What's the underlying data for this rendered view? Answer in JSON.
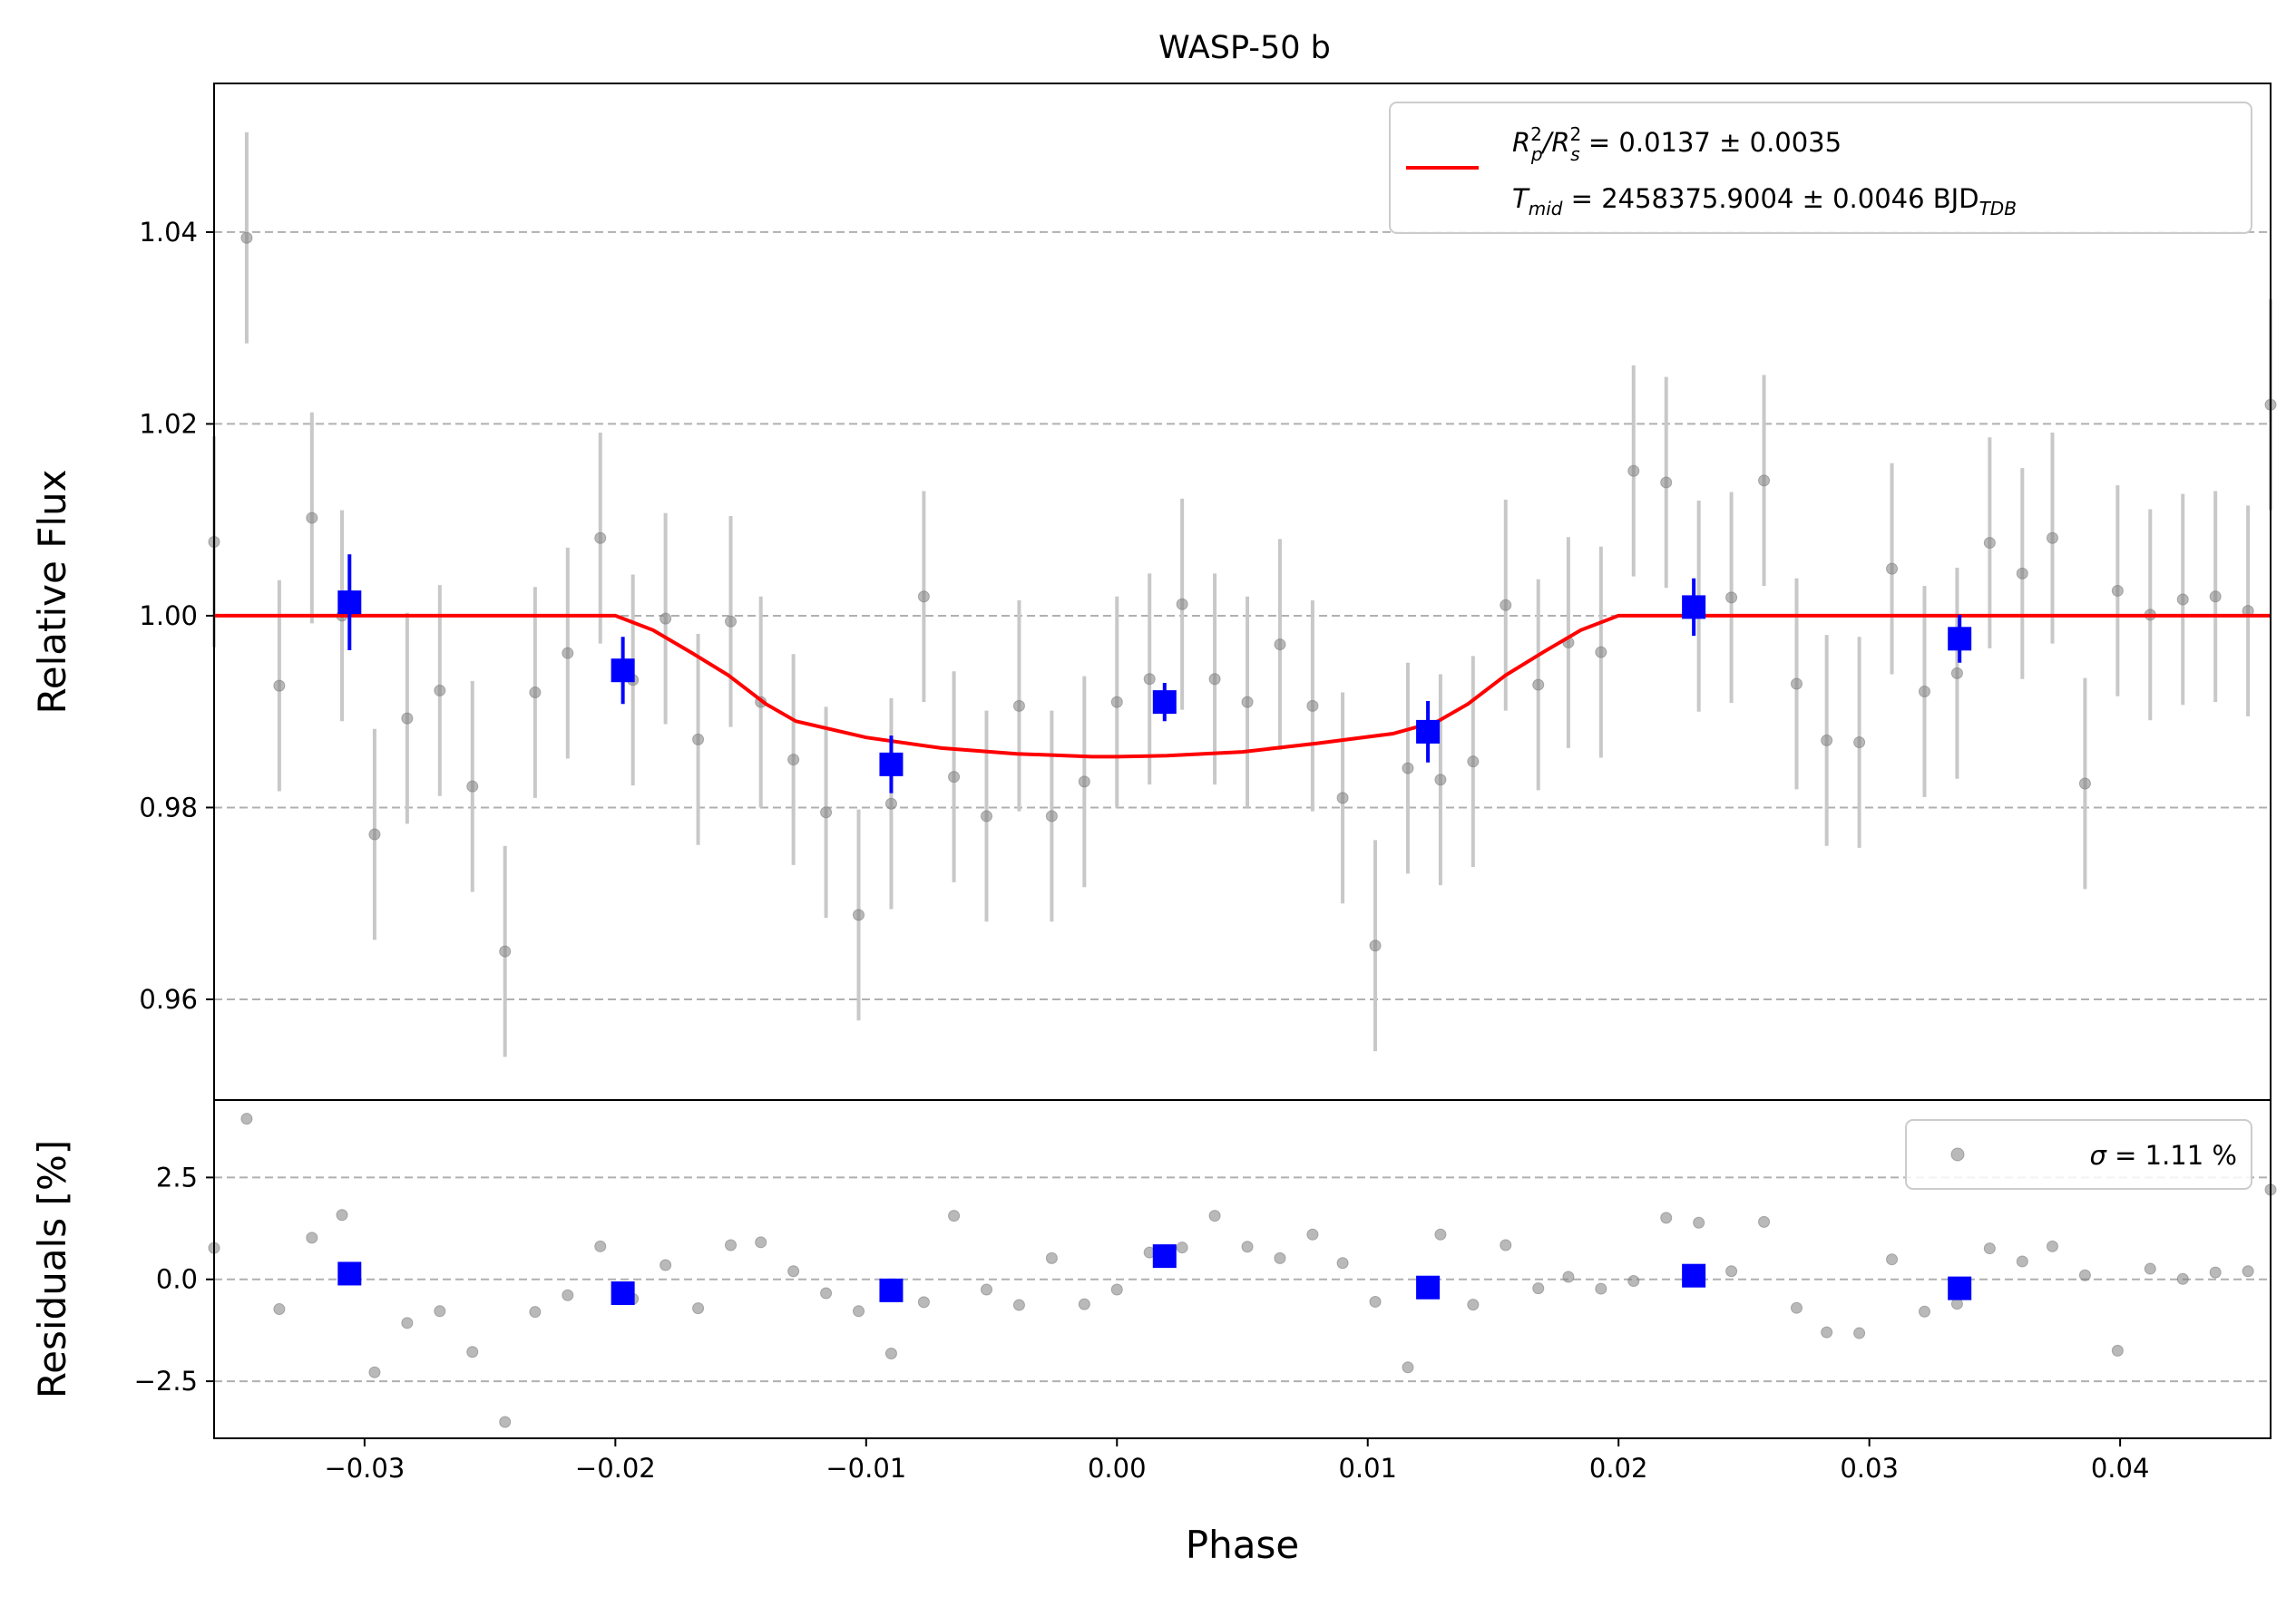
{
  "chart_data": [
    {
      "panel": "main",
      "type": "scatter",
      "title": "WASP-50 b",
      "xlabel": "",
      "ylabel": "Relative Flux",
      "xlim": [
        -0.036,
        0.046
      ],
      "ylim": [
        0.9495,
        1.0555
      ],
      "yticks": [
        0.96,
        0.98,
        1.0,
        1.02,
        1.04
      ],
      "ytick_labels": [
        "0.96",
        "0.98",
        "1.00",
        "1.02",
        "1.04"
      ],
      "grid": "horizontal dashed",
      "legend_position": "top-right",
      "legend": {
        "line1": {
          "base": "R",
          "sup1": "2",
          "sub1": "p",
          "slash": "/R",
          "sup2": "2",
          "sub2": "s",
          "rest": " = 0.0137 ± 0.0035"
        },
        "line2": {
          "base": "T",
          "sub1": "mid",
          "rest": " = 2458375.9004 ± 0.0046 BJD",
          "sub2": "TDB"
        }
      },
      "colors": {
        "data": "#808080",
        "errorbar": "#c8c8c8",
        "binned": "#0000ff",
        "model": "#ff0000"
      },
      "data": {
        "x": [
          -0.036,
          -0.0347,
          -0.0334,
          -0.0321,
          -0.0309,
          -0.0296,
          -0.0283,
          -0.027,
          -0.0257,
          -0.0244,
          -0.0232,
          -0.0219,
          -0.0206,
          -0.0193,
          -0.018,
          -0.0167,
          -0.0154,
          -0.0142,
          -0.0129,
          -0.0116,
          -0.0103,
          -0.009,
          -0.0077,
          -0.0065,
          -0.0052,
          -0.0039,
          -0.0026,
          -0.0013,
          0.0,
          0.0013,
          0.0026,
          0.0039,
          0.0052,
          0.0065,
          0.0078,
          0.009,
          0.0103,
          0.0116,
          0.0129,
          0.0142,
          0.0155,
          0.0168,
          0.018,
          0.0193,
          0.0206,
          0.0219,
          0.0232,
          0.0245,
          0.0258,
          0.0271,
          0.0283,
          0.0296,
          0.0309,
          0.0322,
          0.0335,
          0.0348,
          0.0361,
          0.0373,
          0.0386,
          0.0399,
          0.0412,
          0.0425,
          0.0438,
          0.0451,
          0.046
        ],
        "y": [
          1.0077,
          1.0394,
          0.9927,
          1.0102,
          1.0,
          0.9772,
          0.9893,
          0.9922,
          0.9822,
          0.965,
          0.992,
          0.9961,
          1.0081,
          0.9933,
          0.9997,
          0.9871,
          0.9994,
          0.991,
          0.985,
          0.9795,
          0.9688,
          0.9804,
          1.002,
          0.9832,
          0.9791,
          0.9906,
          0.9791,
          0.9827,
          0.991,
          0.9934,
          1.0012,
          0.9934,
          0.991,
          0.997,
          0.9906,
          0.981,
          0.9656,
          0.9841,
          0.9829,
          0.9848,
          1.0011,
          0.9928,
          0.9972,
          0.9962,
          1.0151,
          1.0139,
          1.001,
          1.0019,
          1.0141,
          0.9929,
          0.987,
          0.9868,
          1.0049,
          0.9921,
          0.994,
          1.0076,
          1.0044,
          1.0081,
          0.9825,
          1.0026,
          1.0001,
          1.0017,
          1.002,
          1.0005,
          1.022
        ],
        "yerr": [
          0.011,
          0.011,
          0.011,
          0.011,
          0.011,
          0.011,
          0.011,
          0.011,
          0.011,
          0.011,
          0.011,
          0.011,
          0.011,
          0.011,
          0.011,
          0.011,
          0.011,
          0.011,
          0.011,
          0.011,
          0.011,
          0.011,
          0.011,
          0.011,
          0.011,
          0.011,
          0.011,
          0.011,
          0.011,
          0.011,
          0.011,
          0.011,
          0.011,
          0.011,
          0.011,
          0.011,
          0.011,
          0.011,
          0.011,
          0.011,
          0.011,
          0.011,
          0.011,
          0.011,
          0.011,
          0.011,
          0.011,
          0.011,
          0.011,
          0.011,
          0.011,
          0.011,
          0.011,
          0.011,
          0.011,
          0.011,
          0.011,
          0.011,
          0.011,
          0.011,
          0.011,
          0.011,
          0.011,
          0.011,
          0.011
        ]
      },
      "binned": {
        "x": [
          -0.0306,
          -0.0197,
          -0.009,
          0.0019,
          0.0124,
          0.023,
          0.0336
        ],
        "y": [
          1.0014,
          0.9943,
          0.9845,
          0.991,
          0.9879,
          1.0009,
          0.9976
        ],
        "yerr": [
          0.005,
          0.0035,
          0.003,
          0.002,
          0.0032,
          0.003,
          0.0025
        ]
      },
      "model": {
        "x": [
          -0.036,
          -0.02,
          -0.0185,
          -0.017,
          -0.0155,
          -0.014,
          -0.0128,
          -0.01,
          -0.007,
          -0.004,
          -0.001,
          0.0,
          0.002,
          0.005,
          0.008,
          0.011,
          0.0128,
          0.014,
          0.0155,
          0.017,
          0.0185,
          0.02,
          0.046
        ],
        "y": [
          1.0,
          1.0,
          0.9985,
          0.9962,
          0.9938,
          0.9908,
          0.989,
          0.9873,
          0.9862,
          0.9856,
          0.9853,
          0.9853,
          0.9854,
          0.9858,
          0.9867,
          0.9877,
          0.989,
          0.9908,
          0.9938,
          0.9962,
          0.9985,
          1.0,
          1.0
        ]
      }
    },
    {
      "panel": "residuals",
      "type": "scatter",
      "xlabel": "Phase",
      "ylabel": "Residuals [%]",
      "xlim": [
        -0.036,
        0.046
      ],
      "ylim": [
        -3.9,
        4.4
      ],
      "xticks": [
        -0.03,
        -0.02,
        -0.01,
        0.0,
        0.01,
        0.02,
        0.03,
        0.04
      ],
      "xtick_labels": [
        "−0.03",
        "−0.02",
        "−0.01",
        "0.00",
        "0.01",
        "0.02",
        "0.03",
        "0.04"
      ],
      "yticks": [
        -2.5,
        0.0,
        2.5
      ],
      "ytick_labels": [
        "−2.5",
        "0.0",
        "2.5"
      ],
      "grid": "horizontal dashed",
      "legend_position": "top-right",
      "legend": {
        "sigma_symbol": "σ",
        "text": " = 1.11 %"
      },
      "data": {
        "x": [
          -0.036,
          -0.0347,
          -0.0334,
          -0.0321,
          -0.0309,
          -0.0296,
          -0.0283,
          -0.027,
          -0.0257,
          -0.0244,
          -0.0232,
          -0.0219,
          -0.0206,
          -0.0193,
          -0.018,
          -0.0167,
          -0.0154,
          -0.0142,
          -0.0129,
          -0.0116,
          -0.0103,
          -0.009,
          -0.0077,
          -0.0065,
          -0.0052,
          -0.0039,
          -0.0026,
          -0.0013,
          0.0,
          0.0013,
          0.0026,
          0.0039,
          0.0052,
          0.0065,
          0.0078,
          0.009,
          0.0103,
          0.0116,
          0.0129,
          0.0142,
          0.0155,
          0.0168,
          0.018,
          0.0193,
          0.0206,
          0.0219,
          0.0232,
          0.0245,
          0.0258,
          0.0271,
          0.0283,
          0.0296,
          0.0309,
          0.0322,
          0.0335,
          0.0348,
          0.0361,
          0.0373,
          0.0386,
          0.0399,
          0.0412,
          0.0425,
          0.0438,
          0.0451,
          0.046
        ],
        "y": [
          0.77,
          3.94,
          -0.73,
          1.02,
          1.58,
          -2.28,
          -1.07,
          -0.78,
          -1.78,
          -3.5,
          -0.8,
          -0.39,
          0.81,
          -0.48,
          0.35,
          -0.71,
          0.84,
          0.91,
          0.2,
          -0.34,
          -0.78,
          -1.82,
          -0.56,
          1.56,
          -0.25,
          -0.63,
          0.52,
          -0.61,
          -0.25,
          0.66,
          0.78,
          1.56,
          0.8,
          0.52,
          1.1,
          0.4,
          -0.55,
          -2.16,
          1.1,
          -0.62,
          0.84,
          -0.22,
          0.06,
          -0.23,
          -0.04,
          1.51,
          1.39,
          0.2,
          1.41,
          -0.7,
          -1.3,
          -1.32,
          0.49,
          -0.79,
          -0.6,
          0.76,
          0.44,
          0.81,
          0.1,
          -1.75,
          0.26,
          0.01,
          0.17,
          0.2,
          2.2
        ]
      },
      "binned": {
        "x": [
          -0.0306,
          -0.0197,
          -0.009,
          0.0019,
          0.0124,
          0.023,
          0.0336
        ],
        "y": [
          0.14,
          -0.34,
          -0.27,
          0.57,
          -0.2,
          0.09,
          -0.22
        ]
      }
    }
  ]
}
